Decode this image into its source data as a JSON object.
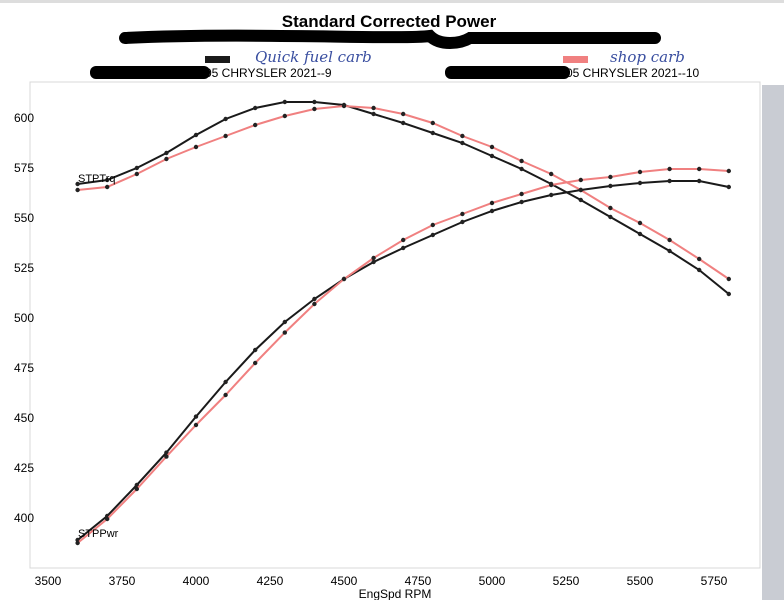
{
  "chart_data": {
    "type": "line",
    "title": "Standard Corrected Power",
    "xlabel": "EngSpd RPM",
    "ylabel": "",
    "xlim": [
      3500,
      5900
    ],
    "ylim": [
      380,
      615
    ],
    "xticks": [
      3500,
      3750,
      4000,
      4250,
      4500,
      4750,
      5000,
      5250,
      5500,
      5750
    ],
    "yticks": [
      400,
      425,
      450,
      475,
      500,
      525,
      550,
      575,
      600
    ],
    "grid": false,
    "legend": [
      {
        "label": "05 CHRYSLER 2021--9",
        "note": "Quick fuel carb",
        "color": "#1a1a1a"
      },
      {
        "label": "05 CHRYSLER 2021--10",
        "note": "shop carb",
        "color": "#f08080"
      }
    ],
    "curve_labels": {
      "torque": "STPTrq",
      "power": "STPPwr"
    },
    "x": [
      3600,
      3700,
      3800,
      3900,
      4000,
      4100,
      4200,
      4300,
      4400,
      4500,
      4600,
      4700,
      4800,
      4900,
      5000,
      5100,
      5200,
      5300,
      5400,
      5500,
      5600,
      5700,
      5800
    ],
    "series": [
      {
        "name": "05 CHRYSLER 2021--9",
        "quantity": "STPTrq",
        "color": "#1a1a1a",
        "values": [
          567,
          569,
          575,
          582.5,
          591.5,
          599.5,
          605,
          608,
          608,
          606.5,
          602,
          597.5,
          592.5,
          587.5,
          581,
          574.5,
          567,
          559,
          550.5,
          542,
          533.5,
          524,
          512
        ]
      },
      {
        "name": "05 CHRYSLER 2021--10",
        "quantity": "STPTrq",
        "color": "#f08080",
        "values": [
          564,
          565.5,
          572,
          579.5,
          585.5,
          591,
          596.5,
          601,
          604.5,
          606,
          605,
          602,
          597.5,
          591,
          585.5,
          578.5,
          572,
          564,
          555,
          547.5,
          539,
          529.5,
          519.5
        ]
      },
      {
        "name": "05 CHRYSLER 2021--9",
        "quantity": "STPPwr",
        "color": "#1a1a1a",
        "values": [
          389,
          401,
          416.5,
          432.7,
          450.7,
          468,
          484,
          498,
          509.5,
          519.5,
          528,
          535,
          541.5,
          548,
          553.5,
          558,
          561.5,
          564,
          566,
          567.5,
          568.5,
          568.5,
          565.5
        ]
      },
      {
        "name": "05 CHRYSLER 2021--10",
        "quantity": "STPPwr",
        "color": "#f08080",
        "values": [
          387.5,
          399.5,
          414.5,
          430.7,
          446.5,
          461.5,
          477.5,
          492.7,
          507,
          519.5,
          530,
          539,
          546.5,
          552,
          557.5,
          562,
          566.5,
          569,
          570.5,
          573,
          574.5,
          574.5,
          573.5
        ]
      }
    ]
  }
}
